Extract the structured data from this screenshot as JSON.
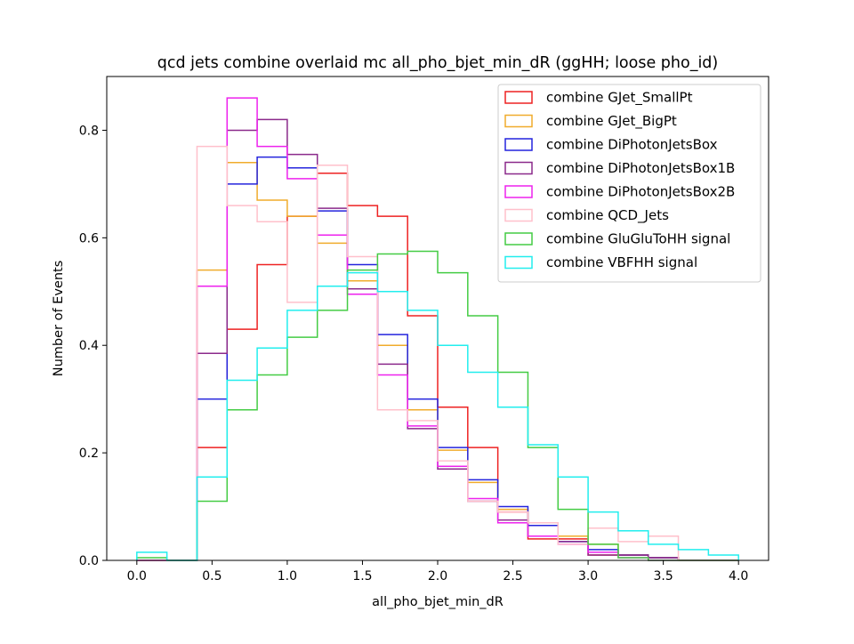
{
  "chart_data": {
    "type": "line",
    "title": "qcd jets combine overlaid mc all_pho_bjet_min_dR (ggHH; loose pho_id)",
    "xlabel": "all_pho_bjet_min_dR",
    "ylabel": "Number of Events",
    "xlim": [
      -0.2,
      4.2
    ],
    "ylim": [
      0,
      0.9
    ],
    "xticks": [
      "0.0",
      "0.5",
      "1.0",
      "1.5",
      "2.0",
      "2.5",
      "3.0",
      "3.5",
      "4.0"
    ],
    "yticks": [
      "0.0",
      "0.2",
      "0.4",
      "0.6",
      "0.8"
    ],
    "grid": false,
    "legend_position": "top-right",
    "bin_edges": [
      0.0,
      0.2,
      0.4,
      0.6,
      0.8,
      1.0,
      1.2,
      1.4,
      1.6,
      1.8,
      2.0,
      2.2,
      2.4,
      2.6,
      2.8,
      3.0,
      3.2,
      3.4,
      3.6,
      3.8,
      4.0
    ],
    "series": [
      {
        "name": "combine GJet_SmallPt",
        "color": "#ee2222",
        "values": [
          0.0,
          0.0,
          0.21,
          0.43,
          0.55,
          0.64,
          0.72,
          0.66,
          0.64,
          0.455,
          0.285,
          0.21,
          0.09,
          0.04,
          0.04,
          0.01,
          0.01,
          0.005,
          0.0,
          0.0
        ]
      },
      {
        "name": "combine GJet_BigPt",
        "color": "#f0ac2c",
        "values": [
          0.0,
          0.0,
          0.54,
          0.74,
          0.67,
          0.64,
          0.59,
          0.52,
          0.4,
          0.28,
          0.205,
          0.145,
          0.095,
          0.07,
          0.045,
          0.03,
          0.01,
          0.005,
          0.0,
          0.0
        ]
      },
      {
        "name": "combine DiPhotonJetsBox",
        "color": "#2424dd",
        "values": [
          0.0,
          0.0,
          0.3,
          0.7,
          0.75,
          0.73,
          0.65,
          0.55,
          0.42,
          0.3,
          0.21,
          0.15,
          0.1,
          0.065,
          0.035,
          0.02,
          0.01,
          0.005,
          0.0,
          0.0
        ]
      },
      {
        "name": "combine DiPhotonJetsBox1B",
        "color": "#8b2a8b",
        "values": [
          0.0,
          0.0,
          0.385,
          0.8,
          0.82,
          0.755,
          0.655,
          0.505,
          0.365,
          0.245,
          0.17,
          0.11,
          0.075,
          0.045,
          0.035,
          0.01,
          0.01,
          0.005,
          0.0,
          0.0
        ]
      },
      {
        "name": "combine DiPhotonJetsBox2B",
        "color": "#ee22ee",
        "values": [
          0.0,
          0.0,
          0.51,
          0.86,
          0.77,
          0.71,
          0.605,
          0.495,
          0.345,
          0.25,
          0.175,
          0.115,
          0.07,
          0.045,
          0.03,
          0.015,
          0.005,
          0.0,
          0.0,
          0.0
        ]
      },
      {
        "name": "combine QCD_Jets",
        "color": "#ffc0cb",
        "values": [
          0.0,
          0.0,
          0.77,
          0.66,
          0.63,
          0.48,
          0.735,
          0.565,
          0.28,
          0.26,
          0.185,
          0.11,
          0.09,
          0.07,
          0.03,
          0.06,
          0.035,
          0.045,
          0.0,
          0.0
        ]
      },
      {
        "name": "combine GluGluToHH signal",
        "color": "#44cc44",
        "values": [
          0.005,
          0.0,
          0.11,
          0.28,
          0.345,
          0.415,
          0.465,
          0.54,
          0.57,
          0.575,
          0.535,
          0.455,
          0.35,
          0.21,
          0.095,
          0.03,
          0.005,
          0.0,
          0.0,
          0.0
        ]
      },
      {
        "name": "combine VBFHH signal",
        "color": "#22eeee",
        "values": [
          0.015,
          0.0,
          0.155,
          0.335,
          0.395,
          0.465,
          0.51,
          0.535,
          0.5,
          0.465,
          0.4,
          0.35,
          0.285,
          0.215,
          0.155,
          0.09,
          0.055,
          0.03,
          0.02,
          0.01
        ]
      }
    ]
  }
}
